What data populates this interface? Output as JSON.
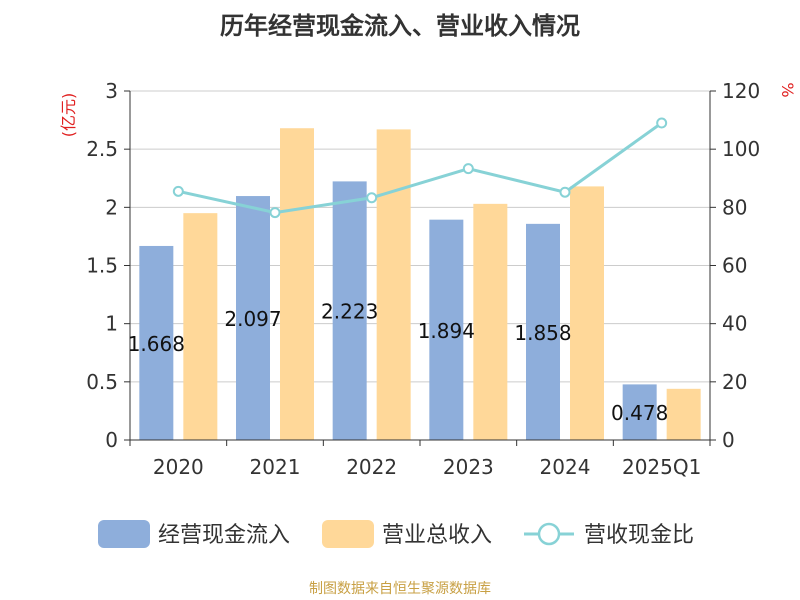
{
  "chart_data": {
    "type": "bar",
    "title": "历年经营现金流入、营业收入情况",
    "categories": [
      "2020",
      "2021",
      "2022",
      "2023",
      "2024",
      "2025Q1"
    ],
    "series": [
      {
        "name": "经营现金流入",
        "type": "bar",
        "axis": "left",
        "color": "#8eaedb",
        "values": [
          1.668,
          2.097,
          2.223,
          1.894,
          1.858,
          0.478
        ],
        "labels": [
          "1.668",
          "2.097",
          "2.223",
          "1.894",
          "1.858",
          "0.478"
        ]
      },
      {
        "name": "营业总收入",
        "type": "bar",
        "axis": "left",
        "color": "#ffd899",
        "values": [
          1.95,
          2.68,
          2.67,
          2.03,
          2.18,
          0.44
        ]
      },
      {
        "name": "营收现金比",
        "type": "line",
        "axis": "right",
        "color": "#87d2d6",
        "values": [
          85.5,
          78.2,
          83.3,
          93.3,
          85.2,
          109.0
        ]
      }
    ],
    "y_left": {
      "label": "(亿元)",
      "range": [
        0,
        3
      ],
      "ticks": [
        "0",
        "0.5",
        "1",
        "1.5",
        "2",
        "2.5",
        "3"
      ]
    },
    "y_right": {
      "label": "%",
      "range": [
        0,
        120
      ],
      "ticks": [
        "0",
        "20",
        "40",
        "60",
        "80",
        "100",
        "120"
      ]
    },
    "grid": true,
    "legend_position": "bottom"
  },
  "footer": {
    "text": "制图数据来自恒生聚源数据库",
    "color": "#c8a044"
  },
  "colors": {
    "axis_label": "#e02020",
    "tick_text": "#333333",
    "grid": "#cccccc"
  }
}
